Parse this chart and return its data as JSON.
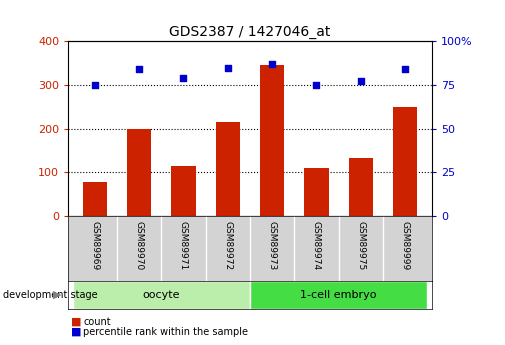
{
  "title": "GDS2387 / 1427046_at",
  "samples": [
    "GSM89969",
    "GSM89970",
    "GSM89971",
    "GSM89972",
    "GSM89973",
    "GSM89974",
    "GSM89975",
    "GSM89999"
  ],
  "counts": [
    78,
    200,
    115,
    215,
    345,
    110,
    133,
    250
  ],
  "percentiles": [
    75,
    84,
    79,
    85,
    87,
    75,
    77,
    84
  ],
  "groups": [
    {
      "label": "oocyte",
      "start": 0,
      "end": 4,
      "color": "#BBEEAA"
    },
    {
      "label": "1-cell embryo",
      "start": 4,
      "end": 8,
      "color": "#44DD44"
    }
  ],
  "bar_color": "#CC2200",
  "dot_color": "#0000CC",
  "left_ylim": [
    0,
    400
  ],
  "right_ylim": [
    0,
    100
  ],
  "left_yticks": [
    0,
    100,
    200,
    300,
    400
  ],
  "right_yticks": [
    0,
    25,
    50,
    75,
    100
  ],
  "right_yticklabels": [
    "0",
    "25",
    "50",
    "75",
    "100%"
  ],
  "grid_values": [
    100,
    200,
    300
  ],
  "background_color": "#ffffff",
  "ticklabel_area_color": "#d3d3d3",
  "legend_count_color": "#CC2200",
  "legend_dot_color": "#0000CC"
}
